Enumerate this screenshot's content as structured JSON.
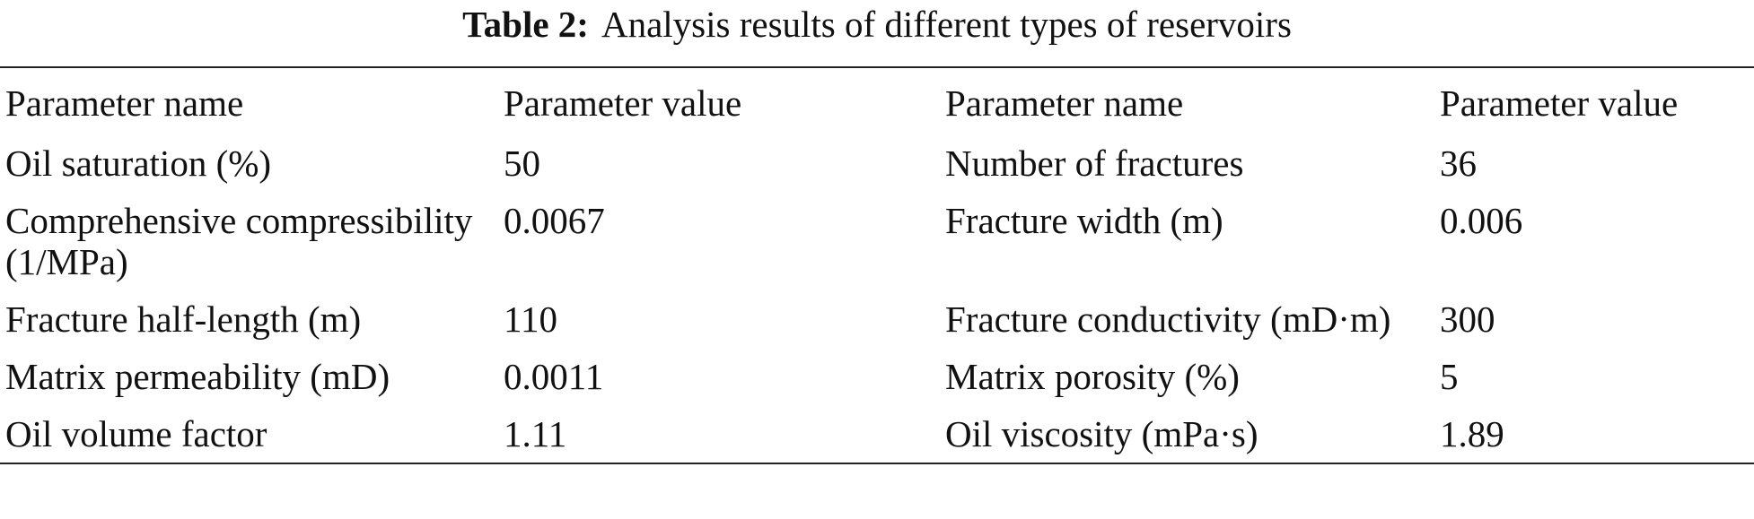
{
  "title": {
    "label": "Table 2:",
    "text": "Analysis results of different types of reservoirs"
  },
  "table": {
    "header": [
      "Parameter name",
      "Parameter value",
      "Parameter name",
      "Parameter value"
    ],
    "rows": [
      [
        "Oil saturation (%)",
        "50",
        "Number of fractures",
        "36"
      ],
      [
        "Comprehensive compressibility (1/MPa)",
        "0.0067",
        "Fracture width (m)",
        "0.006"
      ],
      [
        "Fracture half-length (m)",
        "110",
        "Fracture conductivity (mD·m)",
        "300"
      ],
      [
        "Matrix permeability (mD)",
        "0.0011",
        "Matrix porosity (%)",
        "5"
      ],
      [
        "Oil volume factor",
        "1.11",
        "Oil viscosity (mPa·s)",
        "1.89"
      ]
    ]
  }
}
